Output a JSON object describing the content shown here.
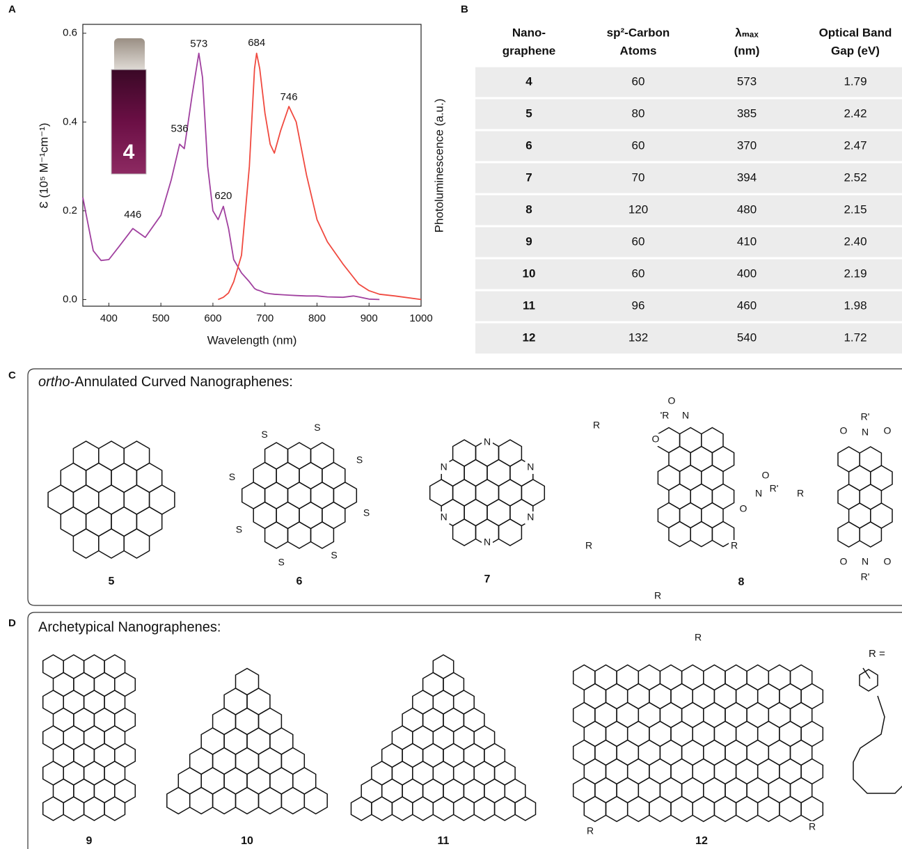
{
  "chart_data": {
    "type": "line",
    "panel_letter": "A",
    "xlabel": "Wavelength (nm)",
    "ylabel": "Ɛ (10⁵ M⁻¹cm⁻¹)",
    "y2label": "Photoluminescence (a.u.)",
    "inset_label": "4",
    "xlim": [
      350,
      1000
    ],
    "xticks": [
      400,
      500,
      600,
      700,
      800,
      900,
      1000
    ],
    "ylim": [
      -0.015,
      0.62
    ],
    "yticks": [
      {
        "value": 0,
        "label": "0.0"
      },
      0.2,
      0.4,
      0.6
    ],
    "x": [
      350,
      370,
      385,
      400,
      420,
      446,
      470,
      500,
      520,
      536,
      545,
      560,
      573,
      580,
      590,
      600,
      610,
      620,
      630,
      640,
      655,
      670,
      680,
      684,
      690,
      700,
      710,
      718,
      730,
      746,
      760,
      780,
      800,
      820,
      850,
      870,
      880,
      900,
      920,
      950,
      1000
    ],
    "series": [
      {
        "color": "#a0409f",
        "values": [
          0.23,
          0.11,
          0.088,
          0.09,
          0.12,
          0.16,
          0.14,
          0.19,
          0.27,
          0.35,
          0.34,
          0.46,
          0.555,
          0.5,
          0.3,
          0.2,
          0.18,
          0.21,
          0.16,
          0.09,
          0.06,
          0.04,
          0.025,
          0.022,
          0.02,
          0.015,
          0.013,
          0.012,
          0.011,
          0.01,
          0.009,
          0.008,
          0.008,
          0.006,
          0.005,
          0.008,
          0.006,
          0.001,
          0.0,
          null,
          null
        ]
      },
      {
        "color": "#f0493f",
        "values": [
          null,
          null,
          null,
          null,
          null,
          null,
          null,
          null,
          null,
          null,
          null,
          null,
          null,
          null,
          null,
          null,
          0.0,
          0.005,
          0.015,
          0.04,
          0.1,
          0.3,
          0.52,
          0.555,
          0.52,
          0.42,
          0.35,
          0.33,
          0.38,
          0.435,
          0.4,
          0.28,
          0.18,
          0.13,
          0.08,
          0.05,
          0.035,
          0.02,
          0.012,
          0.008,
          0.0
        ]
      }
    ],
    "annotations": [
      {
        "x": 446,
        "y": 0.19,
        "text": "446"
      },
      {
        "x": 536,
        "y": 0.384,
        "text": "536"
      },
      {
        "x": 573,
        "y": 0.575,
        "text": "573"
      },
      {
        "x": 620,
        "y": 0.233,
        "text": "620"
      },
      {
        "x": 684,
        "y": 0.578,
        "text": "684"
      },
      {
        "x": 746,
        "y": 0.455,
        "text": "746"
      }
    ]
  },
  "table": {
    "letter": "B",
    "header": [
      [
        "Nano-",
        "graphene"
      ],
      [
        "sp²-Carbon",
        "Atoms"
      ],
      [
        "λₘₐₓ",
        "(nm)"
      ],
      [
        "Optical Band",
        "Gap (eV)"
      ]
    ],
    "rows": [
      [
        "4",
        "60",
        "573",
        "1.79"
      ],
      [
        "5",
        "80",
        "385",
        "2.42"
      ],
      [
        "6",
        "60",
        "370",
        "2.47"
      ],
      [
        "7",
        "70",
        "394",
        "2.52"
      ],
      [
        "8",
        "120",
        "480",
        "2.15"
      ],
      [
        "9",
        "60",
        "410",
        "2.40"
      ],
      [
        "10",
        "60",
        "400",
        "2.19"
      ],
      [
        "11",
        "96",
        "460",
        "1.98"
      ],
      [
        "12",
        "132",
        "540",
        "1.72"
      ]
    ]
  },
  "panel_c": {
    "letter": "C",
    "title_em": "ortho",
    "title": "-Annulated Curved Nanographenes:",
    "compounds": [
      {
        "label": "5"
      },
      {
        "label": "6",
        "atoms": [
          "S",
          "S",
          "S",
          "S",
          "S",
          "S",
          "S",
          "S"
        ]
      },
      {
        "label": "7",
        "atoms": [
          "N",
          "N",
          "N",
          "N",
          "N",
          "N"
        ]
      },
      {
        "label": "8",
        "atoms": [
          "O",
          "'R",
          "N",
          "O",
          "O",
          "N",
          "R'",
          "O",
          "R",
          "R",
          "R",
          "R"
        ]
      },
      {
        "atoms": [
          "R'",
          "O",
          "N",
          "O",
          "R",
          "O",
          "N",
          "O",
          "R'"
        ]
      }
    ]
  },
  "panel_d": {
    "letter": "D",
    "title": "Archetypical Nanographenes:",
    "r_label": "R =",
    "compounds": [
      {
        "label": "9"
      },
      {
        "label": "10"
      },
      {
        "label": "11"
      },
      {
        "label": "12",
        "atoms": [
          "R",
          "R",
          "R"
        ]
      }
    ]
  }
}
